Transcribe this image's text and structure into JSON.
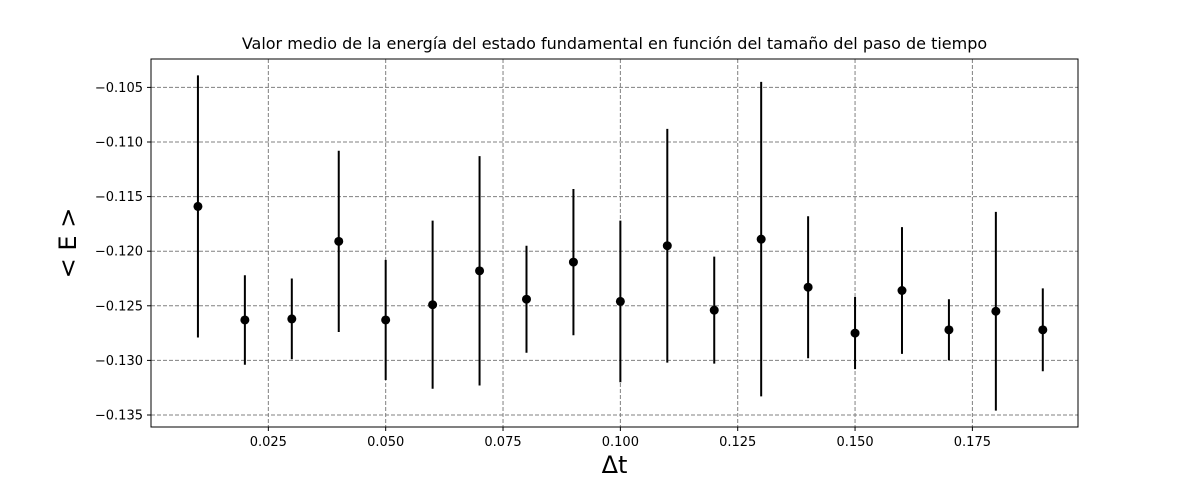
{
  "chart_data": {
    "type": "scatter",
    "title": "Valor medio de la energía del estado fundamental en función del tamaño del paso de tiempo",
    "xlabel": "Δt",
    "ylabel": "< E >",
    "xlim": [
      0.0,
      0.1975
    ],
    "ylim": [
      -0.1361,
      -0.1024
    ],
    "grid": true,
    "x_ticks": [
      0.025,
      0.05,
      0.075,
      0.1,
      0.125,
      0.15,
      0.175
    ],
    "x_tick_labels": [
      "0.025",
      "0.050",
      "0.075",
      "0.100",
      "0.125",
      "0.150",
      "0.175"
    ],
    "y_ticks": [
      -0.105,
      -0.11,
      -0.115,
      -0.12,
      -0.125,
      -0.13,
      -0.135
    ],
    "y_tick_labels": [
      "−0.105",
      "−0.110",
      "−0.115",
      "−0.120",
      "−0.125",
      "−0.130",
      "−0.135"
    ],
    "series": [
      {
        "name": "<E>",
        "color": "#000000",
        "points": [
          {
            "x": 0.01,
            "y": -0.1159,
            "err": 0.012
          },
          {
            "x": 0.02,
            "y": -0.1263,
            "err": 0.0041
          },
          {
            "x": 0.03,
            "y": -0.1262,
            "err": 0.0037
          },
          {
            "x": 0.04,
            "y": -0.1191,
            "err": 0.0083
          },
          {
            "x": 0.05,
            "y": -0.1263,
            "err": 0.0055
          },
          {
            "x": 0.06,
            "y": -0.1249,
            "err": 0.0077
          },
          {
            "x": 0.07,
            "y": -0.1218,
            "err": 0.0105
          },
          {
            "x": 0.08,
            "y": -0.1244,
            "err": 0.0049
          },
          {
            "x": 0.09,
            "y": -0.121,
            "err": 0.0067
          },
          {
            "x": 0.1,
            "y": -0.1246,
            "err": 0.0074
          },
          {
            "x": 0.11,
            "y": -0.1195,
            "err": 0.0107
          },
          {
            "x": 0.12,
            "y": -0.1254,
            "err": 0.0049
          },
          {
            "x": 0.13,
            "y": -0.1189,
            "err": 0.0144
          },
          {
            "x": 0.14,
            "y": -0.1233,
            "err": 0.0065
          },
          {
            "x": 0.15,
            "y": -0.1275,
            "err": 0.0033
          },
          {
            "x": 0.16,
            "y": -0.1236,
            "err": 0.0058
          },
          {
            "x": 0.17,
            "y": -0.1272,
            "err": 0.0028
          },
          {
            "x": 0.18,
            "y": -0.1255,
            "err": 0.0091
          },
          {
            "x": 0.19,
            "y": -0.1272,
            "err": 0.0038
          }
        ]
      }
    ]
  }
}
